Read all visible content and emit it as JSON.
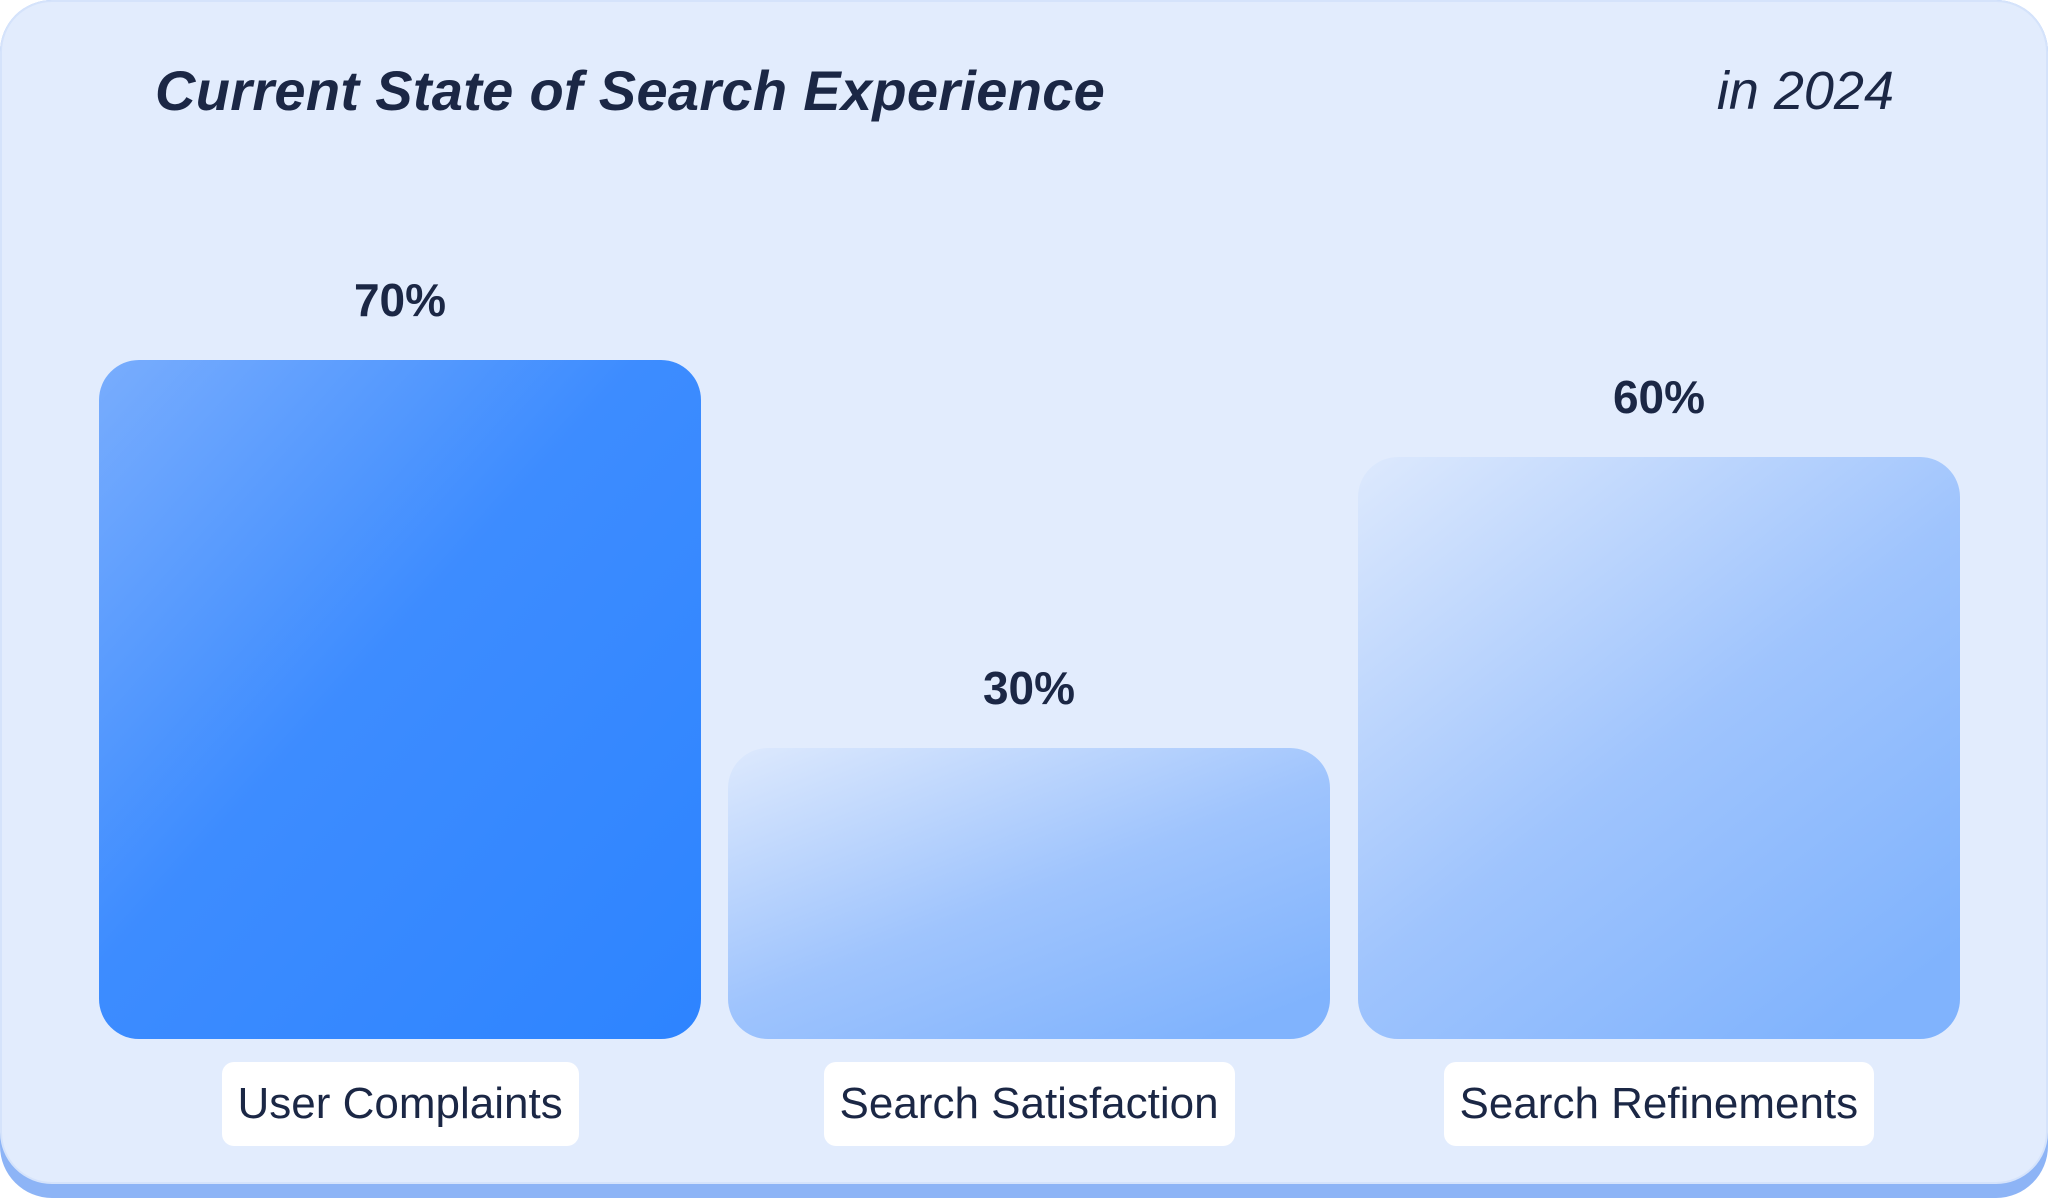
{
  "chart_data": {
    "type": "bar",
    "title": "Current State of Search Experience",
    "subtitle": "in 2024",
    "categories": [
      "User Complaints",
      "Search Satisfaction",
      "Search Refinements"
    ],
    "values": [
      70,
      30,
      60
    ],
    "value_labels": [
      "70%",
      "30%",
      "60%"
    ],
    "unit": "%",
    "ylim": [
      0,
      70
    ],
    "grid": false,
    "legend": "none",
    "colors": [
      "#2d84ff",
      "#80b3fd",
      "#80b3fd"
    ]
  }
}
